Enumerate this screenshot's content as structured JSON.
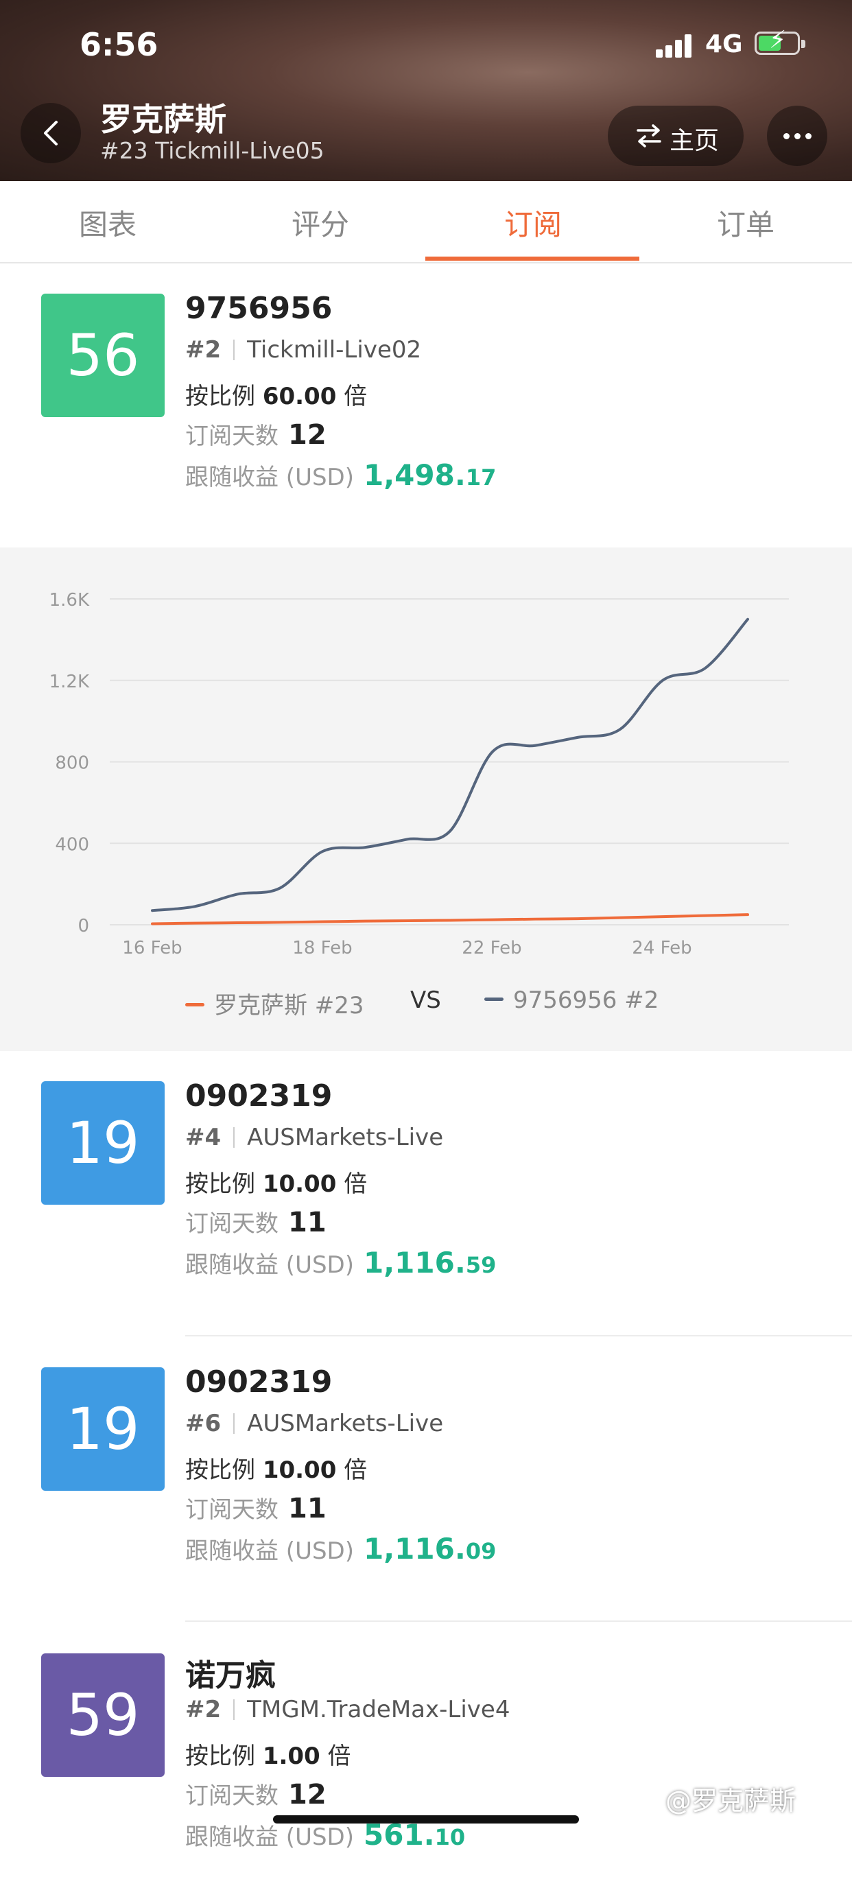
{
  "status_bar": {
    "time": "6:56",
    "network": "4G"
  },
  "header": {
    "title": "罗克萨斯",
    "subtitle": "#23 Tickmill-Live05",
    "home_label": "主页"
  },
  "tabs": [
    {
      "label": "图表"
    },
    {
      "label": "评分"
    },
    {
      "label": "订阅",
      "active": true
    },
    {
      "label": "订单"
    }
  ],
  "subscriptions": [
    {
      "score": "56",
      "color": "#40c689",
      "name": "9756956",
      "rank": "#2",
      "server": "Tickmill-Live02",
      "ratio_label": "按比例",
      "ratio_value": "60.00",
      "ratio_unit": "倍",
      "days_label": "订阅天数",
      "days": "12",
      "profit_label": "跟随收益 (USD)",
      "profit_main": "1,498.",
      "profit_decimal": "17"
    },
    {
      "score": "19",
      "color": "#3f9be3",
      "name": "0902319",
      "rank": "#4",
      "server": "AUSMarkets-Live",
      "ratio_label": "按比例",
      "ratio_value": "10.00",
      "ratio_unit": "倍",
      "days_label": "订阅天数",
      "days": "11",
      "profit_label": "跟随收益 (USD)",
      "profit_main": "1,116.",
      "profit_decimal": "59"
    },
    {
      "score": "19",
      "color": "#3f9be3",
      "name": "0902319",
      "rank": "#6",
      "server": "AUSMarkets-Live",
      "ratio_label": "按比例",
      "ratio_value": "10.00",
      "ratio_unit": "倍",
      "days_label": "订阅天数",
      "days": "11",
      "profit_label": "跟随收益 (USD)",
      "profit_main": "1,116.",
      "profit_decimal": "09"
    },
    {
      "score": "59",
      "color": "#6a5aa6",
      "name": "诺万疯",
      "rank": "#2",
      "server": "TMGM.TradeMax-Live4",
      "ratio_label": "按比例",
      "ratio_value": "1.00",
      "ratio_unit": "倍",
      "days_label": "订阅天数",
      "days": "12",
      "profit_label": "跟随收益 (USD)",
      "profit_main": "561.",
      "profit_decimal": "10"
    }
  ],
  "chart_data": {
    "type": "line",
    "y_ticks": [
      "0",
      "400",
      "800",
      "1.2K",
      "1.6K"
    ],
    "ylim": [
      0,
      1600
    ],
    "x_tick_labels": [
      "16 Feb",
      "18 Feb",
      "22 Feb",
      "24 Feb"
    ],
    "series": [
      {
        "name": "罗克萨斯 #23",
        "color": "#ef6b3a",
        "values": [
          5,
          8,
          10,
          12,
          15,
          18,
          20,
          22,
          25,
          28,
          30,
          35,
          40,
          45,
          50
        ]
      },
      {
        "name": "9756956 #2",
        "color": "#55657d",
        "values": [
          70,
          90,
          150,
          180,
          360,
          380,
          420,
          460,
          850,
          880,
          920,
          960,
          1200,
          1260,
          1500
        ]
      }
    ],
    "legend": {
      "left": "罗克萨斯 #23",
      "vs": "VS",
      "right": "9756956 #2",
      "position": "bottom"
    },
    "grid": true
  },
  "watermark": "@罗克萨斯"
}
